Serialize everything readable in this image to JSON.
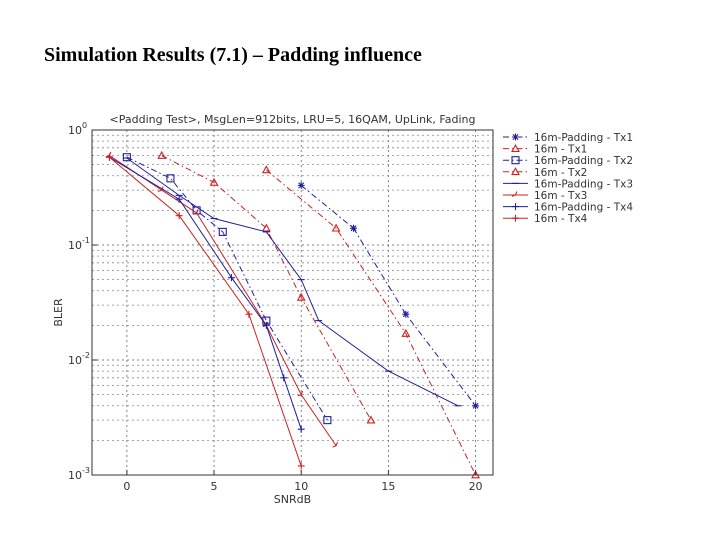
{
  "slide": {
    "title": "Simulation Results (7.1) – Padding influence"
  },
  "chart_data": {
    "type": "line",
    "title": "<Padding Test>, MsgLen=912bits, LRU=5, 16QAM, UpLink, Fading",
    "xlabel": "SNRdB",
    "ylabel": "BLER",
    "xlim": [
      -2,
      21
    ],
    "ylim": [
      0.001,
      1
    ],
    "yscale": "log",
    "x_ticks": [
      0,
      5,
      10,
      15,
      20
    ],
    "y_tick_labels": [
      {
        "base": "10",
        "exp": "0",
        "value": 1
      },
      {
        "base": "10",
        "exp": "-1",
        "value": 0.1
      },
      {
        "base": "10",
        "exp": "-2",
        "value": 0.01
      },
      {
        "base": "10",
        "exp": "-3",
        "value": 0.001
      }
    ],
    "grid": true,
    "legend_position": "right",
    "series": [
      {
        "name": "16m-Padding - Tx1",
        "color": "#1f1f9e",
        "marker": "star",
        "dash": "6,3,1.5,3",
        "points": [
          [
            10,
            0.33
          ],
          [
            13,
            0.14
          ],
          [
            16,
            0.025
          ],
          [
            20,
            0.004
          ]
        ]
      },
      {
        "name": "16m - Tx1",
        "color": "#cc2222",
        "marker": "triangle",
        "dash": "6,3,1.5,3",
        "points": [
          [
            8,
            0.45
          ],
          [
            12,
            0.14
          ],
          [
            16,
            0.017
          ],
          [
            20,
            0.001
          ]
        ]
      },
      {
        "name": "16m-Padding - Tx2",
        "color": "#1f1f9e",
        "marker": "square",
        "dash": "6,3,1.5,3",
        "points": [
          [
            0,
            0.58
          ],
          [
            2.5,
            0.38
          ],
          [
            4,
            0.2
          ],
          [
            5.5,
            0.13
          ],
          [
            8,
            0.022
          ],
          [
            11.5,
            0.003
          ]
        ]
      },
      {
        "name": "16m - Tx2",
        "color": "#cc2222",
        "marker": "triangle",
        "dash": "6,3,1.5,3",
        "points": [
          [
            2,
            0.6
          ],
          [
            5,
            0.35
          ],
          [
            8,
            0.14
          ],
          [
            10,
            0.035
          ],
          [
            14,
            0.003
          ]
        ]
      },
      {
        "name": "16m-Padding - Tx3",
        "color": "#1f1f9e",
        "marker": "dash",
        "dash": "",
        "points": [
          [
            0,
            0.57
          ],
          [
            3,
            0.27
          ],
          [
            5,
            0.17
          ],
          [
            8,
            0.13
          ],
          [
            10,
            0.05
          ],
          [
            11,
            0.022
          ],
          [
            15,
            0.008
          ],
          [
            19,
            0.004
          ]
        ]
      },
      {
        "name": "16m - Tx3",
        "color": "#cc2222",
        "marker": "tick",
        "dash": "",
        "points": [
          [
            -1,
            0.6
          ],
          [
            2,
            0.3
          ],
          [
            4,
            0.19
          ],
          [
            8,
            0.02
          ],
          [
            10,
            0.005
          ],
          [
            12,
            0.0018
          ]
        ]
      },
      {
        "name": "16m-Padding - Tx4",
        "color": "#1f1f9e",
        "marker": "cross",
        "dash": "",
        "points": [
          [
            -1,
            0.58
          ],
          [
            3,
            0.25
          ],
          [
            6,
            0.052
          ],
          [
            8,
            0.02
          ],
          [
            9,
            0.007
          ],
          [
            10,
            0.0025
          ]
        ]
      },
      {
        "name": "16m - Tx4",
        "color": "#cc2222",
        "marker": "plus",
        "dash": "",
        "points": [
          [
            -1,
            0.58
          ],
          [
            3,
            0.18
          ],
          [
            7,
            0.025
          ],
          [
            10,
            0.0012
          ]
        ]
      }
    ]
  }
}
